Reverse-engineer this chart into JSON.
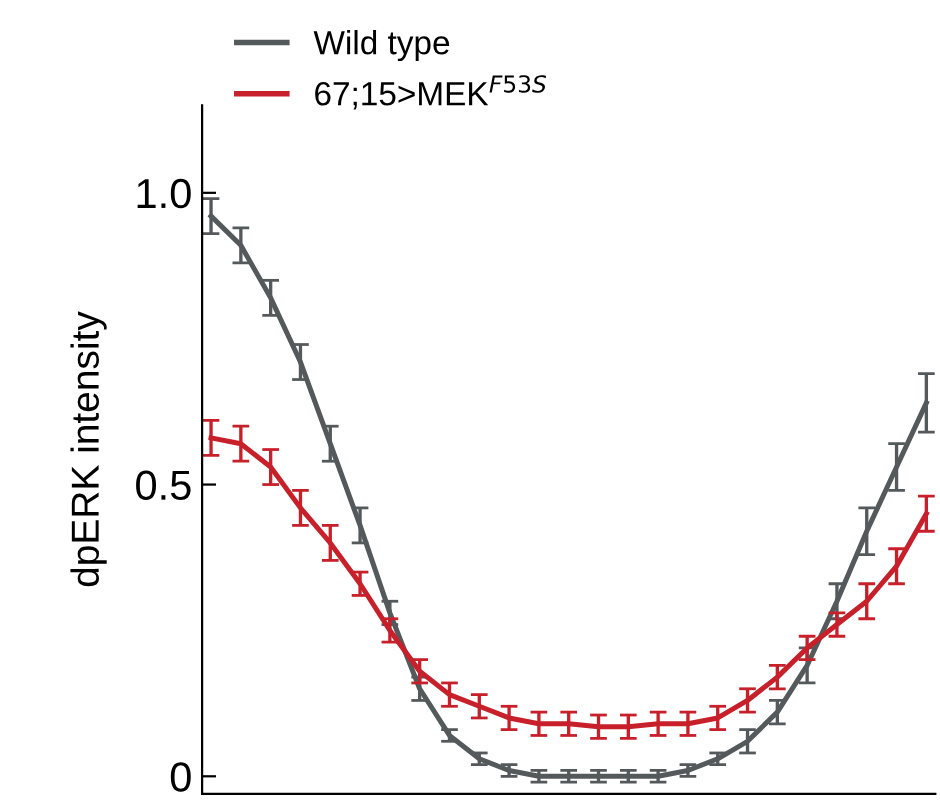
{
  "chart_data": {
    "type": "line",
    "ylabel": "dpERK intensity",
    "categories": [
      null,
      null,
      null,
      null,
      null,
      null,
      null,
      null,
      null,
      null,
      null,
      null,
      null,
      null,
      null,
      null,
      null,
      null,
      null,
      null,
      null,
      null,
      null,
      null,
      null
    ],
    "series": [
      {
        "name": "Wild type",
        "color": "#54595c",
        "values": [
          0.96,
          0.91,
          0.82,
          0.71,
          0.57,
          0.43,
          0.28,
          0.15,
          0.07,
          0.03,
          0.01,
          0,
          0,
          0,
          0,
          0,
          0.01,
          0.03,
          0.06,
          0.11,
          0.19,
          0.3,
          0.42,
          0.53,
          0.64
        ],
        "errors": [
          0.03,
          0.03,
          0.03,
          0.03,
          0.03,
          0.03,
          0.02,
          0.02,
          0.01,
          0.01,
          0.01,
          0.01,
          0.01,
          0.01,
          0.01,
          0.01,
          0.01,
          0.01,
          0.02,
          0.02,
          0.03,
          0.03,
          0.04,
          0.04,
          0.05
        ]
      },
      {
        "name": "67;15>MEK$^{F53S}$",
        "color": "#c8202a",
        "values": [
          0.58,
          0.57,
          0.53,
          0.46,
          0.4,
          0.33,
          0.25,
          0.18,
          0.14,
          0.12,
          0.1,
          0.09,
          0.09,
          0.085,
          0.085,
          0.09,
          0.09,
          0.1,
          0.13,
          0.17,
          0.22,
          0.26,
          0.3,
          0.36,
          0.45
        ],
        "errors": [
          0.03,
          0.03,
          0.03,
          0.03,
          0.03,
          0.02,
          0.02,
          0.02,
          0.02,
          0.02,
          0.02,
          0.02,
          0.02,
          0.02,
          0.02,
          0.02,
          0.02,
          0.02,
          0.02,
          0.02,
          0.02,
          0.02,
          0.03,
          0.03,
          0.03
        ]
      }
    ],
    "ylim": [
      -0.03,
      1.15
    ],
    "yticks": [
      0,
      {
        "value": 0.5,
        "label": "0.5"
      },
      {
        "value": 1,
        "label": "1.0"
      }
    ],
    "legend": "top left",
    "marker": "none",
    "line_style": "solid"
  }
}
